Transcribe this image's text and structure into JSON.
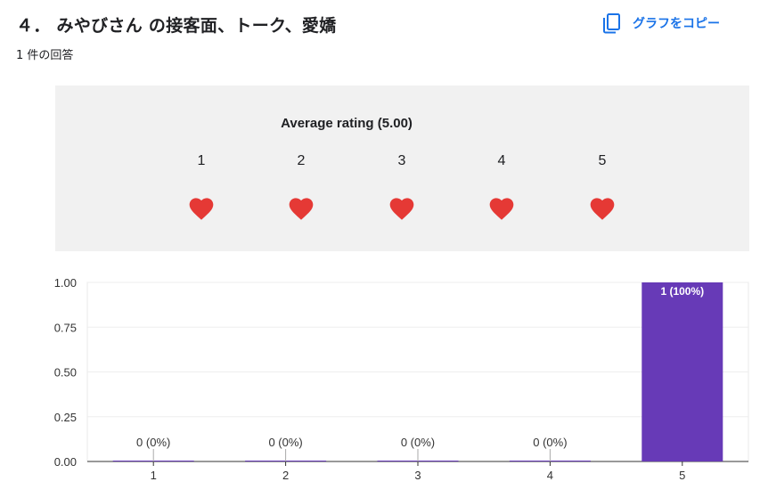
{
  "question": {
    "title": "４． みやびさん の接客面、トーク、愛嬌",
    "response_count": "1 件の回答",
    "copy_label": "グラフをコピー"
  },
  "rating": {
    "title": "Average rating (5.00)",
    "values": [
      "1",
      "2",
      "3",
      "4",
      "5"
    ],
    "heart_color": "#e53935",
    "filled": 5
  },
  "chart_data": {
    "type": "bar",
    "categories": [
      "1",
      "2",
      "3",
      "4",
      "5"
    ],
    "values": [
      0,
      0,
      0,
      0,
      1
    ],
    "data_labels": [
      "0 (0%)",
      "0 (0%)",
      "0 (0%)",
      "0 (0%)",
      "1 (100%)"
    ],
    "yticks": [
      "0.00",
      "0.25",
      "0.50",
      "0.75",
      "1.00"
    ],
    "ylim": [
      0,
      1
    ],
    "bar_color": "#673ab7",
    "grid": true
  }
}
